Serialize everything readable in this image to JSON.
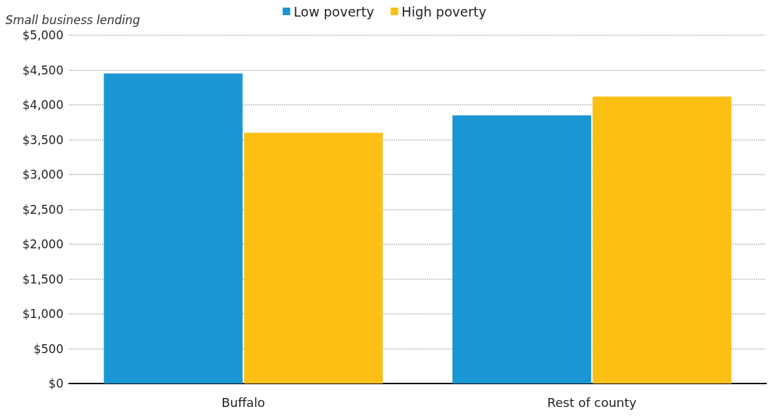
{
  "chart_data": {
    "type": "bar",
    "ylabel": "Small business lending",
    "categories": [
      "Buffalo",
      "Rest of county"
    ],
    "series": [
      {
        "name": "Low poverty",
        "color": "#1a96d4",
        "values": [
          4450,
          3850
        ]
      },
      {
        "name": "High poverty",
        "color": "#fcbf14",
        "values": [
          3600,
          4120
        ]
      }
    ],
    "ylim": [
      0,
      5000
    ],
    "yticks": [
      {
        "value": 0,
        "label": "$0"
      },
      {
        "value": 500,
        "label": "$500"
      },
      {
        "value": 1000,
        "label": "$1,000"
      },
      {
        "value": 1500,
        "label": "$1,500"
      },
      {
        "value": 2000,
        "label": "$2,000"
      },
      {
        "value": 2500,
        "label": "$2,500"
      },
      {
        "value": 3000,
        "label": "$3,000"
      },
      {
        "value": 3500,
        "label": "$3,500"
      },
      {
        "value": 4000,
        "label": "$4,000"
      },
      {
        "value": 4500,
        "label": "$4,500"
      },
      {
        "value": 5000,
        "label": "$5,000"
      }
    ],
    "grid": "y",
    "legend": "top"
  }
}
